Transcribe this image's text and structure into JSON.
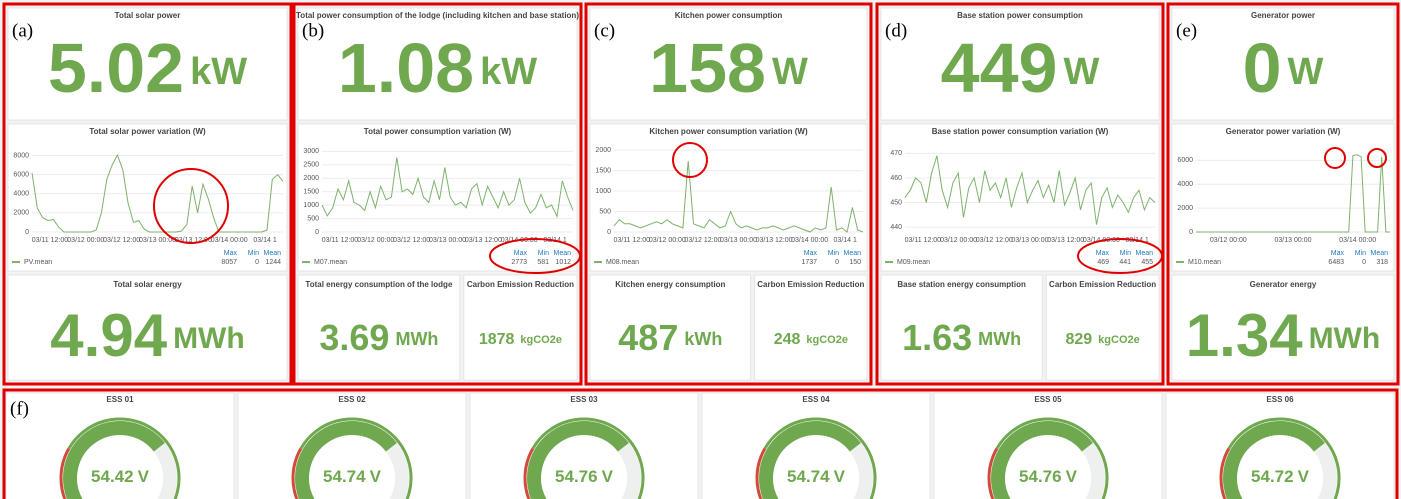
{
  "panels": [
    {
      "label": "(a)",
      "stat": {
        "title": "Total solar power",
        "value": 5.02,
        "unit": "kW"
      },
      "chart": {
        "type": "line",
        "title": "Total solar power variation (W)",
        "ylim": [
          0,
          9000
        ],
        "yticks": [
          0,
          2000,
          4000,
          6000,
          8000
        ],
        "x_tick_labels": [
          "03/11 12:00",
          "03/12 00:00",
          "03/12 12:00",
          "03/13 00:00",
          "03/13 12:00",
          "03/14 00:00",
          "03/14 1"
        ],
        "series": [
          {
            "name": "PV.mean",
            "color": "#7eb26d",
            "values": [
              6200,
              2500,
              1500,
              1200,
              1300,
              500,
              0,
              0,
              0,
              0,
              0,
              0,
              200,
              2000,
              5500,
              7000,
              8057,
              6500,
              3000,
              1000,
              1200,
              300,
              0,
              0,
              0,
              0,
              0,
              0,
              100,
              800,
              4800,
              2000,
              5000,
              3500,
              1500,
              0,
              0,
              0,
              0,
              0,
              0,
              0,
              0,
              0,
              200,
              5500,
              6000,
              5300
            ]
          }
        ],
        "legend_headers": [
          "Max",
          "Min",
          "Mean"
        ],
        "legend_values": [
          8057,
          0,
          1244
        ]
      },
      "bottom": [
        {
          "title": "Total solar energy",
          "value": 4.94,
          "unit": "MWh"
        }
      ]
    },
    {
      "label": "(b)",
      "stat": {
        "title": "Total power consumption of the lodge (including kitchen and base station)",
        "value": 1.08,
        "unit": "kW"
      },
      "chart": {
        "type": "line",
        "title": "Total power consumption variation (W)",
        "ylim": [
          0,
          3200
        ],
        "yticks": [
          0,
          500,
          1000,
          1500,
          2000,
          2500,
          3000
        ],
        "x_tick_labels": [
          "03/11 12:00",
          "03/12 00:00",
          "03/12 12:00",
          "03/13 00:00",
          "03/13 12:00",
          "03/14 00:00",
          "03/14 1"
        ],
        "series": [
          {
            "name": "M07.mean",
            "color": "#7eb26d",
            "values": [
              1000,
              600,
              900,
              1600,
              1200,
              1900,
              1100,
              1000,
              800,
              1500,
              900,
              1700,
              1200,
              1300,
              2773,
              1500,
              1600,
              1400,
              2000,
              1300,
              1100,
              1900,
              1200,
              2400,
              1300,
              1000,
              1100,
              900,
              1600,
              1800,
              1000,
              1700,
              1300,
              900,
              1500,
              1000,
              1200,
              2000,
              1100,
              700,
              900,
              1400,
              900,
              1000,
              581,
              1900,
              1300,
              800
            ]
          }
        ],
        "legend_headers": [
          "Max",
          "Min",
          "Mean"
        ],
        "legend_values": [
          2773,
          581,
          1012
        ]
      },
      "bottom": [
        {
          "title": "Total energy consumption of the lodge",
          "value": 3.69,
          "unit": "MWh"
        },
        {
          "title": "Carbon Emission Reduction",
          "value": 1878,
          "unit": "kgCO2e"
        }
      ]
    },
    {
      "label": "(c)",
      "stat": {
        "title": "Kitchen power consumption",
        "value": 158,
        "unit": "W"
      },
      "chart": {
        "type": "line",
        "title": "Kitchen power consumption variation (W)",
        "ylim": [
          0,
          2100
        ],
        "yticks": [
          0,
          500,
          1000,
          1500,
          2000
        ],
        "x_tick_labels": [
          "03/11 12:00",
          "03/12 00:00",
          "03/12 12:00",
          "03/13 00:00",
          "03/13 12:00",
          "03/14 00:00",
          "03/14 1"
        ],
        "series": [
          {
            "name": "M08.mean",
            "color": "#7eb26d",
            "values": [
              150,
              300,
              200,
              200,
              150,
              100,
              150,
              200,
              250,
              200,
              300,
              200,
              150,
              100,
              1737,
              200,
              150,
              100,
              300,
              200,
              100,
              150,
              500,
              200,
              100,
              150,
              100,
              50,
              100,
              100,
              150,
              100,
              50,
              100,
              150,
              100,
              50,
              0,
              100,
              50,
              100,
              1100,
              50,
              100,
              0,
              600,
              50,
              0
            ]
          }
        ],
        "legend_headers": [
          "Max",
          "Min",
          "Mean"
        ],
        "legend_values": [
          1737,
          0,
          150
        ]
      },
      "bottom": [
        {
          "title": "Kitchen energy consumption",
          "value": 487,
          "unit": "kWh"
        },
        {
          "title": "Carbon Emission Reduction",
          "value": 248,
          "unit": "kgCO2e"
        }
      ]
    },
    {
      "label": "(d)",
      "stat": {
        "title": "Base station power consumption",
        "value": 449,
        "unit": "W"
      },
      "chart": {
        "type": "line",
        "title": "Base station power consumption variation (W)",
        "ylim": [
          438,
          473
        ],
        "yticks": [
          440,
          450,
          460,
          470
        ],
        "x_tick_labels": [
          "03/11 12:00",
          "03/12 00:00",
          "03/12 12:00",
          "03/13 00:00",
          "03/13 12:00",
          "03/14 00:00",
          "03/14 1"
        ],
        "series": [
          {
            "name": "M09.mean",
            "color": "#7eb26d",
            "values": [
              452,
              455,
              460,
              458,
              450,
              462,
              469,
              455,
              448,
              458,
              462,
              444,
              456,
              460,
              450,
              463,
              455,
              458,
              452,
              460,
              448,
              456,
              462,
              450,
              455,
              459,
              452,
              457,
              450,
              463,
              449,
              454,
              460,
              447,
              455,
              458,
              441,
              452,
              456,
              448,
              453,
              450,
              446,
              452,
              455,
              447,
              452,
              450
            ]
          }
        ],
        "legend_headers": [
          "Max",
          "Min",
          "Mean"
        ],
        "legend_values": [
          469,
          441,
          455
        ]
      },
      "bottom": [
        {
          "title": "Base station energy consumption",
          "value": 1.63,
          "unit": "MWh"
        },
        {
          "title": "Carbon Emission Reduction",
          "value": 829,
          "unit": "kgCO2e"
        }
      ]
    },
    {
      "label": "(e)",
      "stat": {
        "title": "Generator power",
        "value": 0,
        "unit": "W"
      },
      "chart": {
        "type": "line",
        "title": "Generator power variation (W)",
        "ylim": [
          0,
          7200
        ],
        "yticks": [
          0,
          2000,
          4000,
          6000
        ],
        "x_tick_labels": [
          "03/12 00:00",
          "03/13 00:00",
          "03/14 00:00"
        ],
        "series": [
          {
            "name": "M10.mean",
            "color": "#7eb26d",
            "values": [
              0,
              0,
              0,
              0,
              0,
              0,
              0,
              0,
              0,
              0,
              0,
              0,
              0,
              0,
              0,
              0,
              0,
              0,
              0,
              0,
              0,
              0,
              0,
              0,
              0,
              0,
              0,
              0,
              0,
              0,
              0,
              0,
              0,
              0,
              0,
              0,
              0,
              0,
              6400,
              6483,
              6300,
              0,
              0,
              0,
              0,
              6300,
              0,
              0
            ]
          }
        ],
        "legend_headers": [
          "Max",
          "Min",
          "Mean"
        ],
        "legend_values": [
          6483,
          0,
          318
        ]
      },
      "bottom": [
        {
          "title": "Generator energy",
          "value": 1.34,
          "unit": "MWh"
        }
      ]
    }
  ],
  "gauges": {
    "label": "(f)",
    "items": [
      {
        "title": "ESS 01",
        "value": 54.42,
        "unit": "V"
      },
      {
        "title": "ESS 02",
        "value": 54.74,
        "unit": "V"
      },
      {
        "title": "ESS 03",
        "value": 54.76,
        "unit": "V"
      },
      {
        "title": "ESS 04",
        "value": 54.74,
        "unit": "V"
      },
      {
        "title": "ESS 05",
        "value": 54.76,
        "unit": "V"
      },
      {
        "title": "ESS 06",
        "value": 54.72,
        "unit": "V"
      }
    ]
  }
}
